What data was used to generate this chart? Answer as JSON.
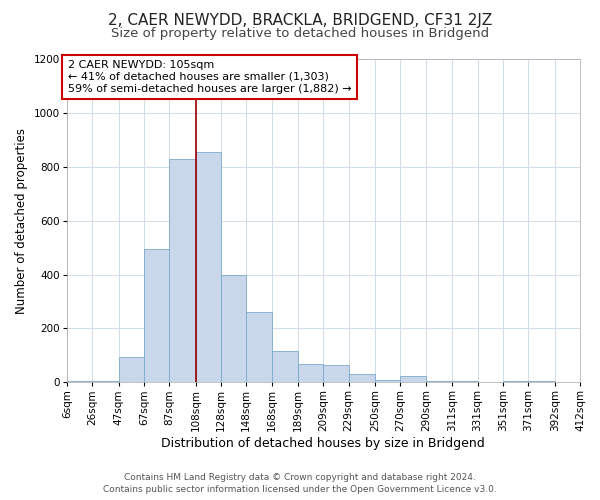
{
  "title": "2, CAER NEWYDD, BRACKLA, BRIDGEND, CF31 2JZ",
  "subtitle": "Size of property relative to detached houses in Bridgend",
  "xlabel": "Distribution of detached houses by size in Bridgend",
  "ylabel": "Number of detached properties",
  "bar_color": "#c8d8ea",
  "bar_edge_color": "#7aaac8",
  "background_color": "#ffffff",
  "grid_color": "#d0dce8",
  "bin_edges": [
    6,
    26,
    47,
    67,
    87,
    108,
    128,
    148,
    168,
    189,
    209,
    229,
    250,
    270,
    290,
    311,
    331,
    351,
    371,
    392,
    412
  ],
  "bin_labels": [
    "6sqm",
    "26sqm",
    "47sqm",
    "67sqm",
    "87sqm",
    "108sqm",
    "128sqm",
    "148sqm",
    "168sqm",
    "189sqm",
    "209sqm",
    "229sqm",
    "250sqm",
    "270sqm",
    "290sqm",
    "311sqm",
    "331sqm",
    "351sqm",
    "371sqm",
    "392sqm",
    "412sqm"
  ],
  "bar_heights": [
    5,
    5,
    95,
    495,
    830,
    855,
    400,
    260,
    115,
    70,
    65,
    30,
    10,
    25,
    5,
    5,
    0,
    5,
    5,
    0
  ],
  "vline_x": 108,
  "vline_color": "#990000",
  "annotation_title": "2 CAER NEWYDD: 105sqm",
  "annotation_line1": "← 41% of detached houses are smaller (1,303)",
  "annotation_line2": "59% of semi-detached houses are larger (1,882) →",
  "annotation_box_facecolor": "#ffffff",
  "annotation_box_edgecolor": "#cc0000",
  "ylim": [
    0,
    1200
  ],
  "yticks": [
    0,
    200,
    400,
    600,
    800,
    1000,
    1200
  ],
  "footer_line1": "Contains HM Land Registry data © Crown copyright and database right 2024.",
  "footer_line2": "Contains public sector information licensed under the Open Government Licence v3.0.",
  "title_fontsize": 11,
  "subtitle_fontsize": 9.5,
  "xlabel_fontsize": 9,
  "ylabel_fontsize": 8.5,
  "tick_fontsize": 7.5,
  "annotation_fontsize": 8,
  "footer_fontsize": 6.5
}
